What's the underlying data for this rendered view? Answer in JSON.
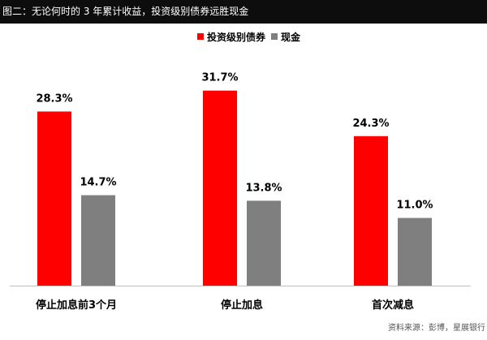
{
  "header": {
    "title": "图二：无论何时的 3 年累计收益，投资级别债券远胜现金"
  },
  "source": "资料来源：彭博，星展银行",
  "chart_data": {
    "type": "bar",
    "categories": [
      "停止加息前3个月",
      "停止加息",
      "首次减息"
    ],
    "series": [
      {
        "name": "投资级别债券",
        "values": [
          28.3,
          31.7,
          24.3
        ],
        "labels": [
          "28.3%",
          "31.7%",
          "24.3%"
        ],
        "color": "#ff0000"
      },
      {
        "name": "现金",
        "values": [
          14.7,
          13.8,
          11.0
        ],
        "labels": [
          "14.7%",
          "13.8%",
          "11.0%"
        ],
        "color": "#7f7f7f"
      }
    ],
    "ylim": [
      0,
      33.5
    ],
    "grid": false,
    "legend": "top-center"
  }
}
